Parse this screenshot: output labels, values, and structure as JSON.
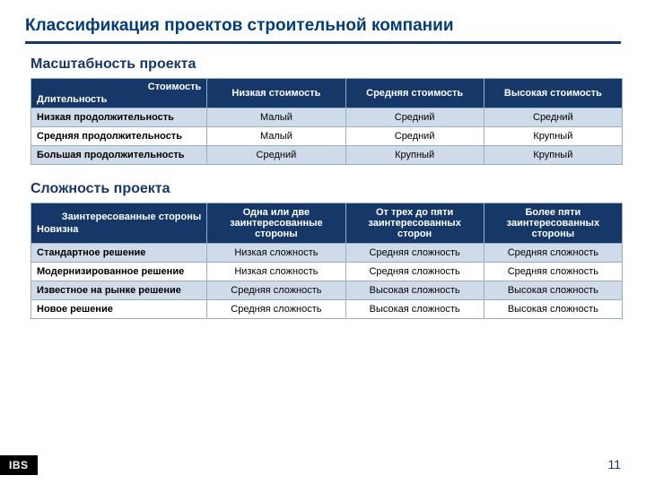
{
  "title": "Классификация проектов строительной компании",
  "sections": {
    "scale": {
      "heading": "Масштабность проекта",
      "corner_top": "Стоимость",
      "corner_bottom": "Длительность",
      "columns": [
        "Низкая стоимость",
        "Средняя стоимость",
        "Высокая стоимость"
      ],
      "rows": [
        {
          "label": "Низкая продолжительность",
          "cells": [
            "Малый",
            "Средний",
            "Средний"
          ]
        },
        {
          "label": "Средняя продолжительность",
          "cells": [
            "Малый",
            "Средний",
            "Крупный"
          ]
        },
        {
          "label": "Большая продолжительность",
          "cells": [
            "Средний",
            "Крупный",
            "Крупный"
          ]
        }
      ]
    },
    "complexity": {
      "heading": "Сложность проекта",
      "corner_top": "Заинтересованные стороны",
      "corner_bottom": "Новизна",
      "columns": [
        "Одна или две заинтересованные стороны",
        "От трех до пяти заинтересованных сторон",
        "Более пяти заинтересованных стороны"
      ],
      "rows": [
        {
          "label": "Стандартное решение",
          "cells": [
            "Низкая сложность",
            "Средняя сложность",
            "Средняя сложность"
          ]
        },
        {
          "label": "Модернизированное решение",
          "cells": [
            "Низкая сложность",
            "Средняя сложность",
            "Средняя сложность"
          ]
        },
        {
          "label": "Известное на рынке решение",
          "cells": [
            "Средняя сложность",
            "Высокая сложность",
            "Высокая сложность"
          ]
        },
        {
          "label": "Новое решение",
          "cells": [
            "Средняя сложность",
            "Высокая сложность",
            "Высокая сложность"
          ]
        }
      ]
    }
  },
  "logo": "IBS",
  "page_number": "11",
  "colors": {
    "brand_dark": "#153868",
    "title_blue": "#003d7a",
    "row_shade": "#cfdbe8",
    "border": "#94b0c5"
  }
}
